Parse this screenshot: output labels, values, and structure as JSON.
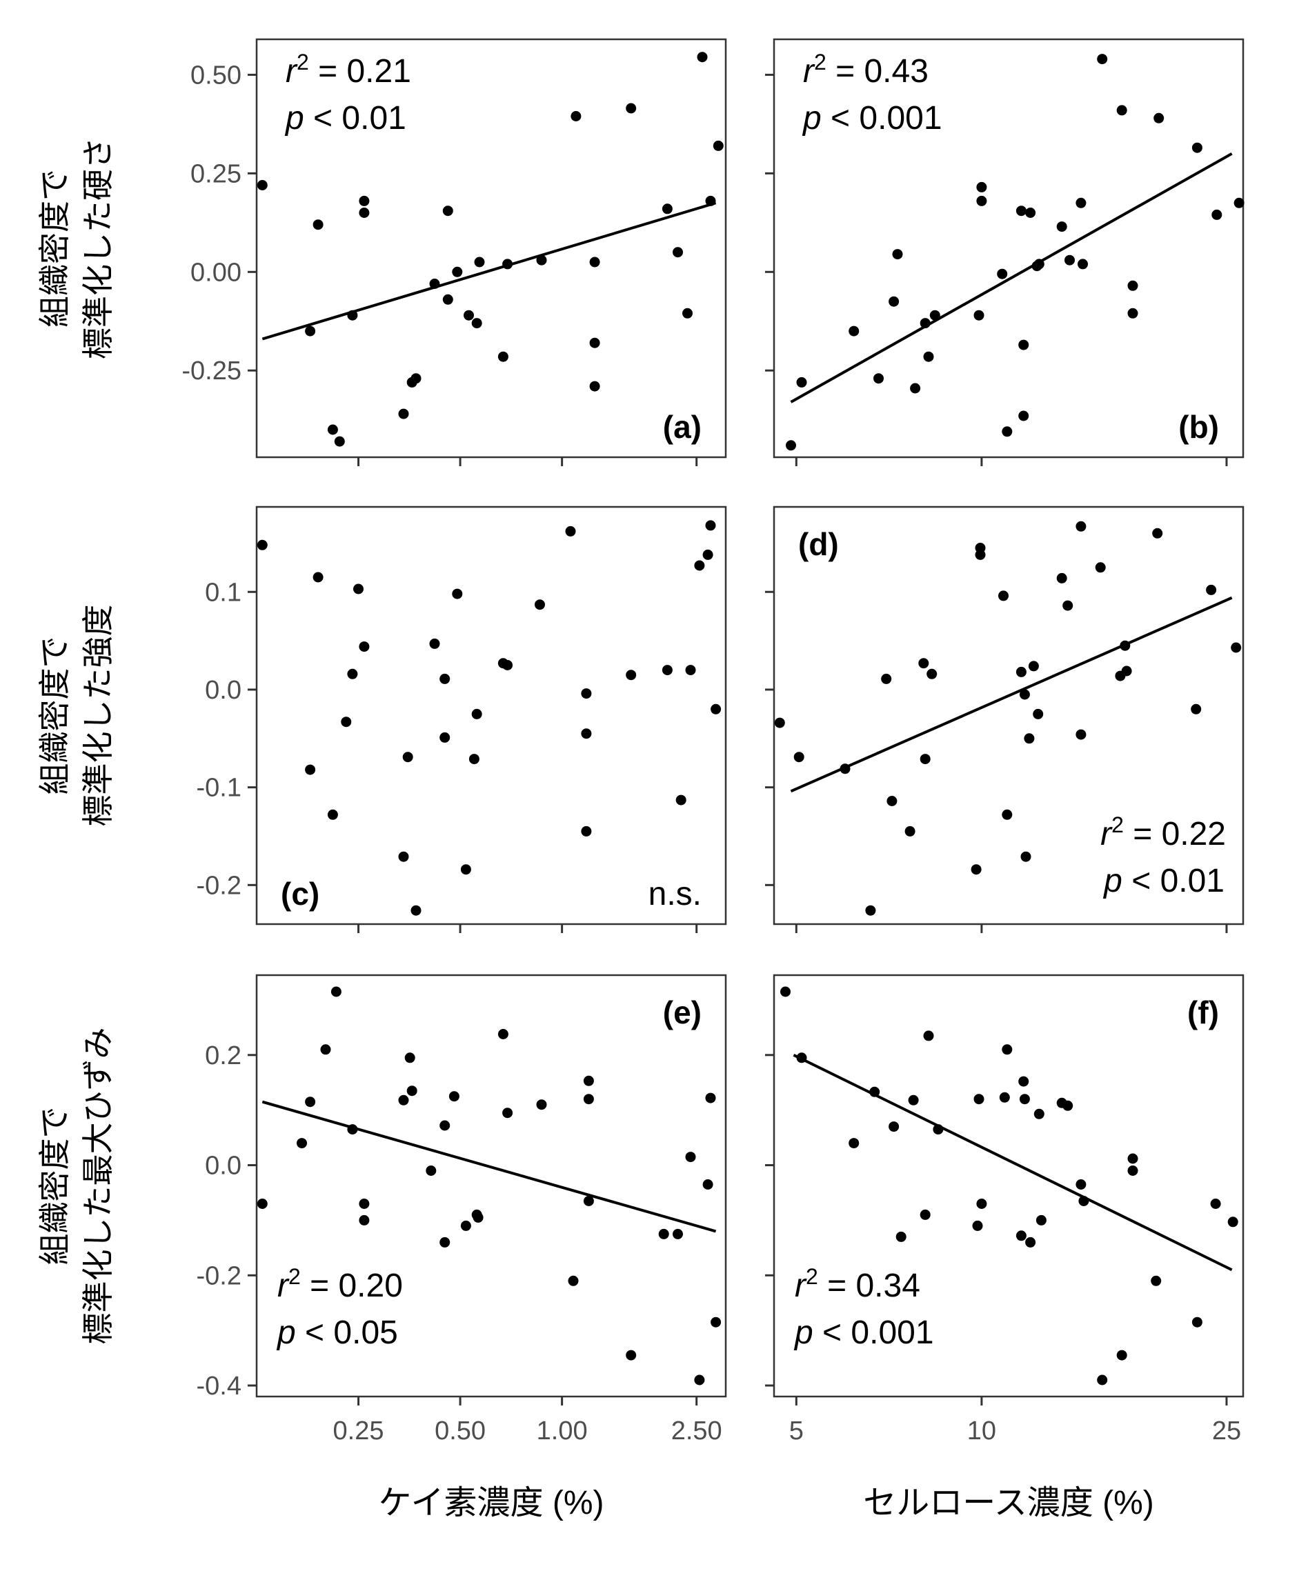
{
  "chart_data": {
    "type": "scatter",
    "x_axes": [
      {
        "label": "ケイ素濃度 (%)",
        "scale": "log",
        "ticks": [
          0.25,
          0.5,
          1.0,
          2.5
        ],
        "tick_labels": [
          "0.25",
          "0.50",
          "1.00",
          "2.50"
        ]
      },
      {
        "label": "セルロース濃度 (%)",
        "scale": "log",
        "ticks": [
          5,
          10,
          25
        ],
        "tick_labels": [
          "5",
          "10",
          "25"
        ]
      }
    ],
    "rows": [
      {
        "ylabel_line1": "組織密度で",
        "ylabel_line2": "標準化した硬さ",
        "ticks": [
          -0.25,
          0.0,
          0.25,
          0.5
        ],
        "tick_labels": [
          "-0.25",
          "0.00",
          "0.25",
          "0.50"
        ]
      },
      {
        "ylabel_line1": "組織密度で",
        "ylabel_line2": "標準化した強度",
        "ticks": [
          -0.2,
          -0.1,
          0.0,
          0.1
        ],
        "tick_labels": [
          "-0.2",
          "-0.1",
          "0.0",
          "0.1"
        ]
      },
      {
        "ylabel_line1": "組織密度で",
        "ylabel_line2": "標準化した最大ひずみ",
        "ticks": [
          -0.4,
          -0.2,
          0.0,
          0.2
        ],
        "tick_labels": [
          "-0.4",
          "-0.2",
          "0.0",
          "0.2"
        ]
      }
    ],
    "panels": [
      {
        "tag": "(a)",
        "stat_r2": "= 0.21",
        "stat_p": "< 0.01",
        "fit": {
          "x1": 0.13,
          "y1": -0.17,
          "x2": 2.85,
          "y2": 0.175
        },
        "points": [
          [
            0.13,
            0.22
          ],
          [
            0.18,
            -0.15
          ],
          [
            0.19,
            0.12
          ],
          [
            0.21,
            -0.4
          ],
          [
            0.22,
            -0.43
          ],
          [
            0.24,
            -0.11
          ],
          [
            0.26,
            0.15
          ],
          [
            0.26,
            0.18
          ],
          [
            0.34,
            -0.36
          ],
          [
            0.36,
            -0.28
          ],
          [
            0.37,
            -0.27
          ],
          [
            0.42,
            -0.03
          ],
          [
            0.46,
            0.155
          ],
          [
            0.46,
            -0.07
          ],
          [
            0.49,
            0.0
          ],
          [
            0.53,
            -0.11
          ],
          [
            0.57,
            0.025
          ],
          [
            0.56,
            -0.13
          ],
          [
            0.67,
            -0.215
          ],
          [
            0.69,
            0.02
          ],
          [
            0.87,
            0.03
          ],
          [
            1.1,
            0.395
          ],
          [
            1.25,
            0.025
          ],
          [
            1.25,
            -0.18
          ],
          [
            1.25,
            -0.29
          ],
          [
            1.6,
            0.415
          ],
          [
            2.05,
            0.16
          ],
          [
            2.2,
            0.05
          ],
          [
            2.35,
            -0.105
          ],
          [
            2.6,
            0.545
          ],
          [
            2.75,
            0.18
          ],
          [
            2.9,
            0.32
          ]
        ]
      },
      {
        "tag": "(b)",
        "stat_r2": "= 0.43",
        "stat_p": "< 0.001",
        "fit": {
          "x1": 4.9,
          "y1": -0.33,
          "x2": 25.5,
          "y2": 0.3
        },
        "points": [
          [
            4.9,
            -0.44
          ],
          [
            5.1,
            -0.28
          ],
          [
            6.2,
            -0.15
          ],
          [
            6.8,
            -0.27
          ],
          [
            7.2,
            -0.075
          ],
          [
            7.3,
            0.045
          ],
          [
            7.8,
            -0.295
          ],
          [
            8.1,
            -0.13
          ],
          [
            8.2,
            -0.215
          ],
          [
            8.4,
            -0.11
          ],
          [
            9.9,
            -0.11
          ],
          [
            10.0,
            0.18
          ],
          [
            10.0,
            0.215
          ],
          [
            10.8,
            -0.005
          ],
          [
            11.0,
            -0.405
          ],
          [
            11.6,
            0.155
          ],
          [
            11.7,
            -0.185
          ],
          [
            11.7,
            -0.365
          ],
          [
            12.0,
            0.15
          ],
          [
            12.3,
            0.015
          ],
          [
            12.4,
            0.02
          ],
          [
            13.5,
            0.115
          ],
          [
            13.9,
            0.03
          ],
          [
            14.5,
            0.175
          ],
          [
            14.6,
            0.02
          ],
          [
            15.7,
            0.54
          ],
          [
            16.9,
            0.41
          ],
          [
            17.6,
            -0.035
          ],
          [
            17.6,
            -0.105
          ],
          [
            19.4,
            0.39
          ],
          [
            22.4,
            0.315
          ],
          [
            24.1,
            0.145
          ],
          [
            26.2,
            0.175
          ]
        ]
      },
      {
        "tag": "(c)",
        "note": "n.s.",
        "points": [
          [
            0.13,
            0.148
          ],
          [
            0.18,
            -0.082
          ],
          [
            0.19,
            0.115
          ],
          [
            0.21,
            -0.128
          ],
          [
            0.23,
            -0.033
          ],
          [
            0.24,
            0.016
          ],
          [
            0.25,
            0.103
          ],
          [
            0.26,
            0.044
          ],
          [
            0.34,
            -0.171
          ],
          [
            0.35,
            -0.069
          ],
          [
            0.37,
            -0.226
          ],
          [
            0.42,
            0.047
          ],
          [
            0.45,
            0.011
          ],
          [
            0.45,
            -0.049
          ],
          [
            0.49,
            0.098
          ],
          [
            0.52,
            -0.184
          ],
          [
            0.55,
            -0.071
          ],
          [
            0.56,
            -0.025
          ],
          [
            0.67,
            0.027
          ],
          [
            0.69,
            0.025
          ],
          [
            0.86,
            0.087
          ],
          [
            1.06,
            0.162
          ],
          [
            1.18,
            -0.004
          ],
          [
            1.18,
            -0.045
          ],
          [
            1.18,
            -0.145
          ],
          [
            1.6,
            0.015
          ],
          [
            2.05,
            0.02
          ],
          [
            2.25,
            -0.113
          ],
          [
            2.4,
            0.02
          ],
          [
            2.55,
            0.127
          ],
          [
            2.7,
            0.138
          ],
          [
            2.75,
            0.168
          ],
          [
            2.85,
            -0.02
          ]
        ]
      },
      {
        "tag": "(d)",
        "stat_r2": "= 0.22",
        "stat_p": "< 0.01",
        "fit": {
          "x1": 4.9,
          "y1": -0.104,
          "x2": 25.5,
          "y2": 0.094
        },
        "points": [
          [
            4.7,
            -0.034
          ],
          [
            5.05,
            -0.069
          ],
          [
            6.0,
            -0.081
          ],
          [
            6.6,
            -0.226
          ],
          [
            7.0,
            0.011
          ],
          [
            7.15,
            -0.114
          ],
          [
            7.65,
            -0.145
          ],
          [
            8.05,
            0.027
          ],
          [
            8.1,
            -0.071
          ],
          [
            8.3,
            0.016
          ],
          [
            9.8,
            -0.184
          ],
          [
            9.95,
            0.138
          ],
          [
            9.95,
            0.145
          ],
          [
            10.85,
            0.096
          ],
          [
            11.0,
            -0.128
          ],
          [
            11.6,
            0.018
          ],
          [
            11.75,
            -0.005
          ],
          [
            11.8,
            -0.171
          ],
          [
            11.95,
            -0.05
          ],
          [
            12.15,
            0.024
          ],
          [
            12.35,
            -0.025
          ],
          [
            13.5,
            0.114
          ],
          [
            13.8,
            0.086
          ],
          [
            14.5,
            0.167
          ],
          [
            14.5,
            -0.046
          ],
          [
            15.6,
            0.125
          ],
          [
            16.8,
            0.014
          ],
          [
            17.1,
            0.045
          ],
          [
            17.2,
            0.019
          ],
          [
            19.3,
            0.16
          ],
          [
            22.3,
            -0.02
          ],
          [
            23.6,
            0.102
          ],
          [
            25.9,
            0.043
          ]
        ]
      },
      {
        "tag": "(e)",
        "stat_r2": "= 0.20",
        "stat_p": "< 0.05",
        "fit": {
          "x1": 0.13,
          "y1": 0.115,
          "x2": 2.85,
          "y2": -0.12
        },
        "points": [
          [
            0.13,
            -0.07
          ],
          [
            0.17,
            0.04
          ],
          [
            0.18,
            0.115
          ],
          [
            0.2,
            0.21
          ],
          [
            0.215,
            0.315
          ],
          [
            0.24,
            0.065
          ],
          [
            0.26,
            -0.07
          ],
          [
            0.26,
            -0.1
          ],
          [
            0.34,
            0.118
          ],
          [
            0.355,
            0.195
          ],
          [
            0.36,
            0.135
          ],
          [
            0.41,
            -0.01
          ],
          [
            0.45,
            -0.14
          ],
          [
            0.45,
            0.072
          ],
          [
            0.48,
            0.125
          ],
          [
            0.52,
            -0.11
          ],
          [
            0.56,
            -0.09
          ],
          [
            0.565,
            -0.095
          ],
          [
            0.67,
            0.238
          ],
          [
            0.69,
            0.095
          ],
          [
            0.87,
            0.11
          ],
          [
            1.08,
            -0.21
          ],
          [
            1.2,
            0.12
          ],
          [
            1.2,
            0.153
          ],
          [
            1.2,
            -0.065
          ],
          [
            1.6,
            -0.345
          ],
          [
            2.0,
            -0.125
          ],
          [
            2.2,
            -0.125
          ],
          [
            2.4,
            0.015
          ],
          [
            2.55,
            -0.39
          ],
          [
            2.7,
            -0.035
          ],
          [
            2.75,
            0.122
          ],
          [
            2.85,
            -0.285
          ]
        ]
      },
      {
        "tag": "(f)",
        "stat_r2": "= 0.34",
        "stat_p": "< 0.001",
        "fit": {
          "x1": 4.95,
          "y1": 0.2,
          "x2": 25.5,
          "y2": -0.19
        },
        "points": [
          [
            4.8,
            0.315
          ],
          [
            5.1,
            0.195
          ],
          [
            6.2,
            0.04
          ],
          [
            6.7,
            0.133
          ],
          [
            7.2,
            0.07
          ],
          [
            7.4,
            -0.13
          ],
          [
            7.75,
            0.118
          ],
          [
            8.1,
            -0.09
          ],
          [
            8.2,
            0.235
          ],
          [
            8.5,
            0.065
          ],
          [
            9.9,
            0.12
          ],
          [
            10.0,
            -0.07
          ],
          [
            9.85,
            -0.11
          ],
          [
            10.9,
            0.123
          ],
          [
            11.0,
            0.21
          ],
          [
            11.6,
            -0.128
          ],
          [
            11.7,
            0.152
          ],
          [
            11.75,
            0.12
          ],
          [
            12.0,
            -0.14
          ],
          [
            12.4,
            0.093
          ],
          [
            12.5,
            -0.1
          ],
          [
            13.5,
            0.113
          ],
          [
            13.8,
            0.108
          ],
          [
            14.5,
            -0.035
          ],
          [
            14.65,
            -0.065
          ],
          [
            15.7,
            -0.39
          ],
          [
            16.9,
            -0.345
          ],
          [
            17.6,
            -0.01
          ],
          [
            17.6,
            0.012
          ],
          [
            19.2,
            -0.21
          ],
          [
            22.4,
            -0.285
          ],
          [
            24.0,
            -0.07
          ],
          [
            25.6,
            -0.103
          ]
        ]
      }
    ]
  }
}
